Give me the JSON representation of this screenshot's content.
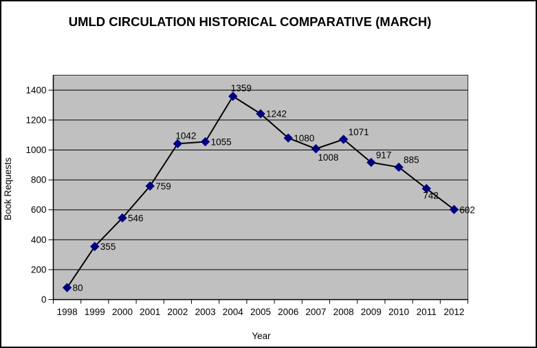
{
  "window": {
    "background": "#ffffff",
    "border_color": "#000000"
  },
  "chart_data": {
    "type": "line",
    "title": "UMLD CIRCULATION HISTORICAL COMPARATIVE (MARCH)",
    "xlabel": "Year",
    "ylabel": "Book Requests",
    "categories": [
      "1998",
      "1999",
      "2000",
      "2001",
      "2002",
      "2003",
      "2004",
      "2005",
      "2006",
      "2007",
      "2008",
      "2009",
      "2010",
      "2011",
      "2012"
    ],
    "values": [
      80,
      355,
      546,
      759,
      1042,
      1055,
      1359,
      1242,
      1080,
      1008,
      1071,
      917,
      885,
      742,
      602
    ],
    "data_labels_visible": true,
    "label_positions": [
      "right",
      "right",
      "right",
      "right",
      "above",
      "right",
      "above",
      "right",
      "right",
      "below-right",
      "above-right",
      "above-right",
      "above-right",
      "below",
      "right"
    ],
    "ylim": [
      0,
      1500
    ],
    "yticks": [
      0,
      200,
      400,
      600,
      800,
      1000,
      1200,
      1400
    ],
    "grid": "horizontal",
    "legend": "none",
    "marker": "diamond",
    "colors": {
      "plot_bg": "#c0c0c0",
      "plot_border": "#000000",
      "grid": "#000000",
      "line": "#000000",
      "marker": "#000080",
      "text": "#000000",
      "background": "#ffffff"
    }
  }
}
